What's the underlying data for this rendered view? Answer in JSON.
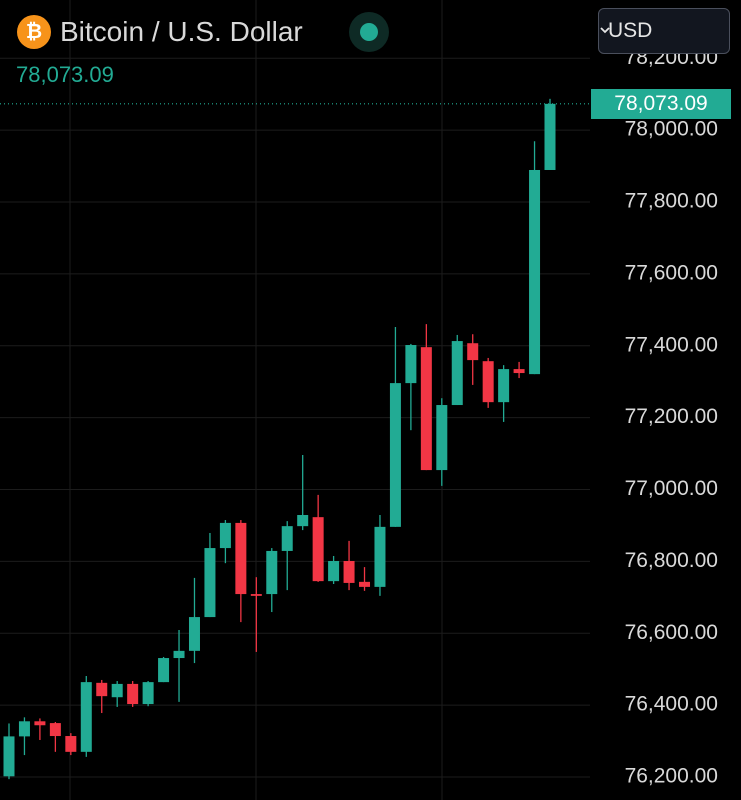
{
  "chart_data": {
    "type": "candlestick",
    "title": "Bitcoin / U.S. Dollar",
    "currency": "USD",
    "last_price": {
      "value": 78073.09,
      "label": "78,073.09"
    },
    "up_color": "#22ab94",
    "down_color": "#f23645",
    "open": [
      76202,
      76313,
      76355,
      76350,
      76314,
      76270,
      76462,
      76422,
      76459,
      76403,
      76464,
      76531,
      76551,
      76645,
      76837,
      76907,
      76709,
      76709,
      76829,
      76898,
      76923,
      76745,
      76801,
      76743,
      76729,
      76896,
      77296,
      77396,
      77054,
      77235,
      77407,
      77357,
      77243,
      77335,
      77321,
      77889
    ],
    "high": [
      76349,
      76366,
      76363,
      76353,
      76322,
      76481,
      76470,
      76467,
      76467,
      76467,
      76534,
      76609,
      76754,
      76879,
      76915,
      76915,
      76756,
      76837,
      76912,
      77096,
      76985,
      76815,
      76857,
      76784,
      76929,
      77452,
      77405,
      77460,
      77254,
      77430,
      77432,
      77366,
      77346,
      77355,
      77969,
      78087
    ],
    "low": [
      76194,
      76261,
      76303,
      76270,
      76261,
      76256,
      76378,
      76395,
      76395,
      76397,
      76464,
      76409,
      76517,
      76645,
      76795,
      76631,
      76548,
      76659,
      76720,
      76887,
      76743,
      76737,
      76720,
      76718,
      76704,
      76896,
      77165,
      77054,
      77010,
      77235,
      77291,
      77227,
      77188,
      77310,
      77321,
      77889
    ],
    "close": [
      76313,
      76355,
      76344,
      76314,
      76270,
      76464,
      76425,
      76459,
      76403,
      76464,
      76531,
      76551,
      76645,
      76837,
      76907,
      76709,
      76704,
      76829,
      76898,
      76929,
      76745,
      76801,
      76740,
      76729,
      76896,
      77296,
      77402,
      77054,
      77235,
      77413,
      77360,
      77243,
      77335,
      77324,
      77889,
      78073.09
    ],
    "ylim": [
      76136,
      78362
    ],
    "yticks": [
      {
        "value": 76200,
        "label": "76,200.00"
      },
      {
        "value": 76400,
        "label": "76,400.00"
      },
      {
        "value": 76600,
        "label": "76,600.00"
      },
      {
        "value": 76800,
        "label": "76,800.00"
      },
      {
        "value": 77000,
        "label": "77,000.00"
      },
      {
        "value": 77200,
        "label": "77,200.00"
      },
      {
        "value": 77400,
        "label": "77,400.00"
      },
      {
        "value": 77600,
        "label": "77,600.00"
      },
      {
        "value": 77800,
        "label": "77,800.00"
      },
      {
        "value": 78000,
        "label": "78,000.00"
      },
      {
        "value": 78200,
        "label": "78,200.00"
      }
    ],
    "grid": true
  }
}
